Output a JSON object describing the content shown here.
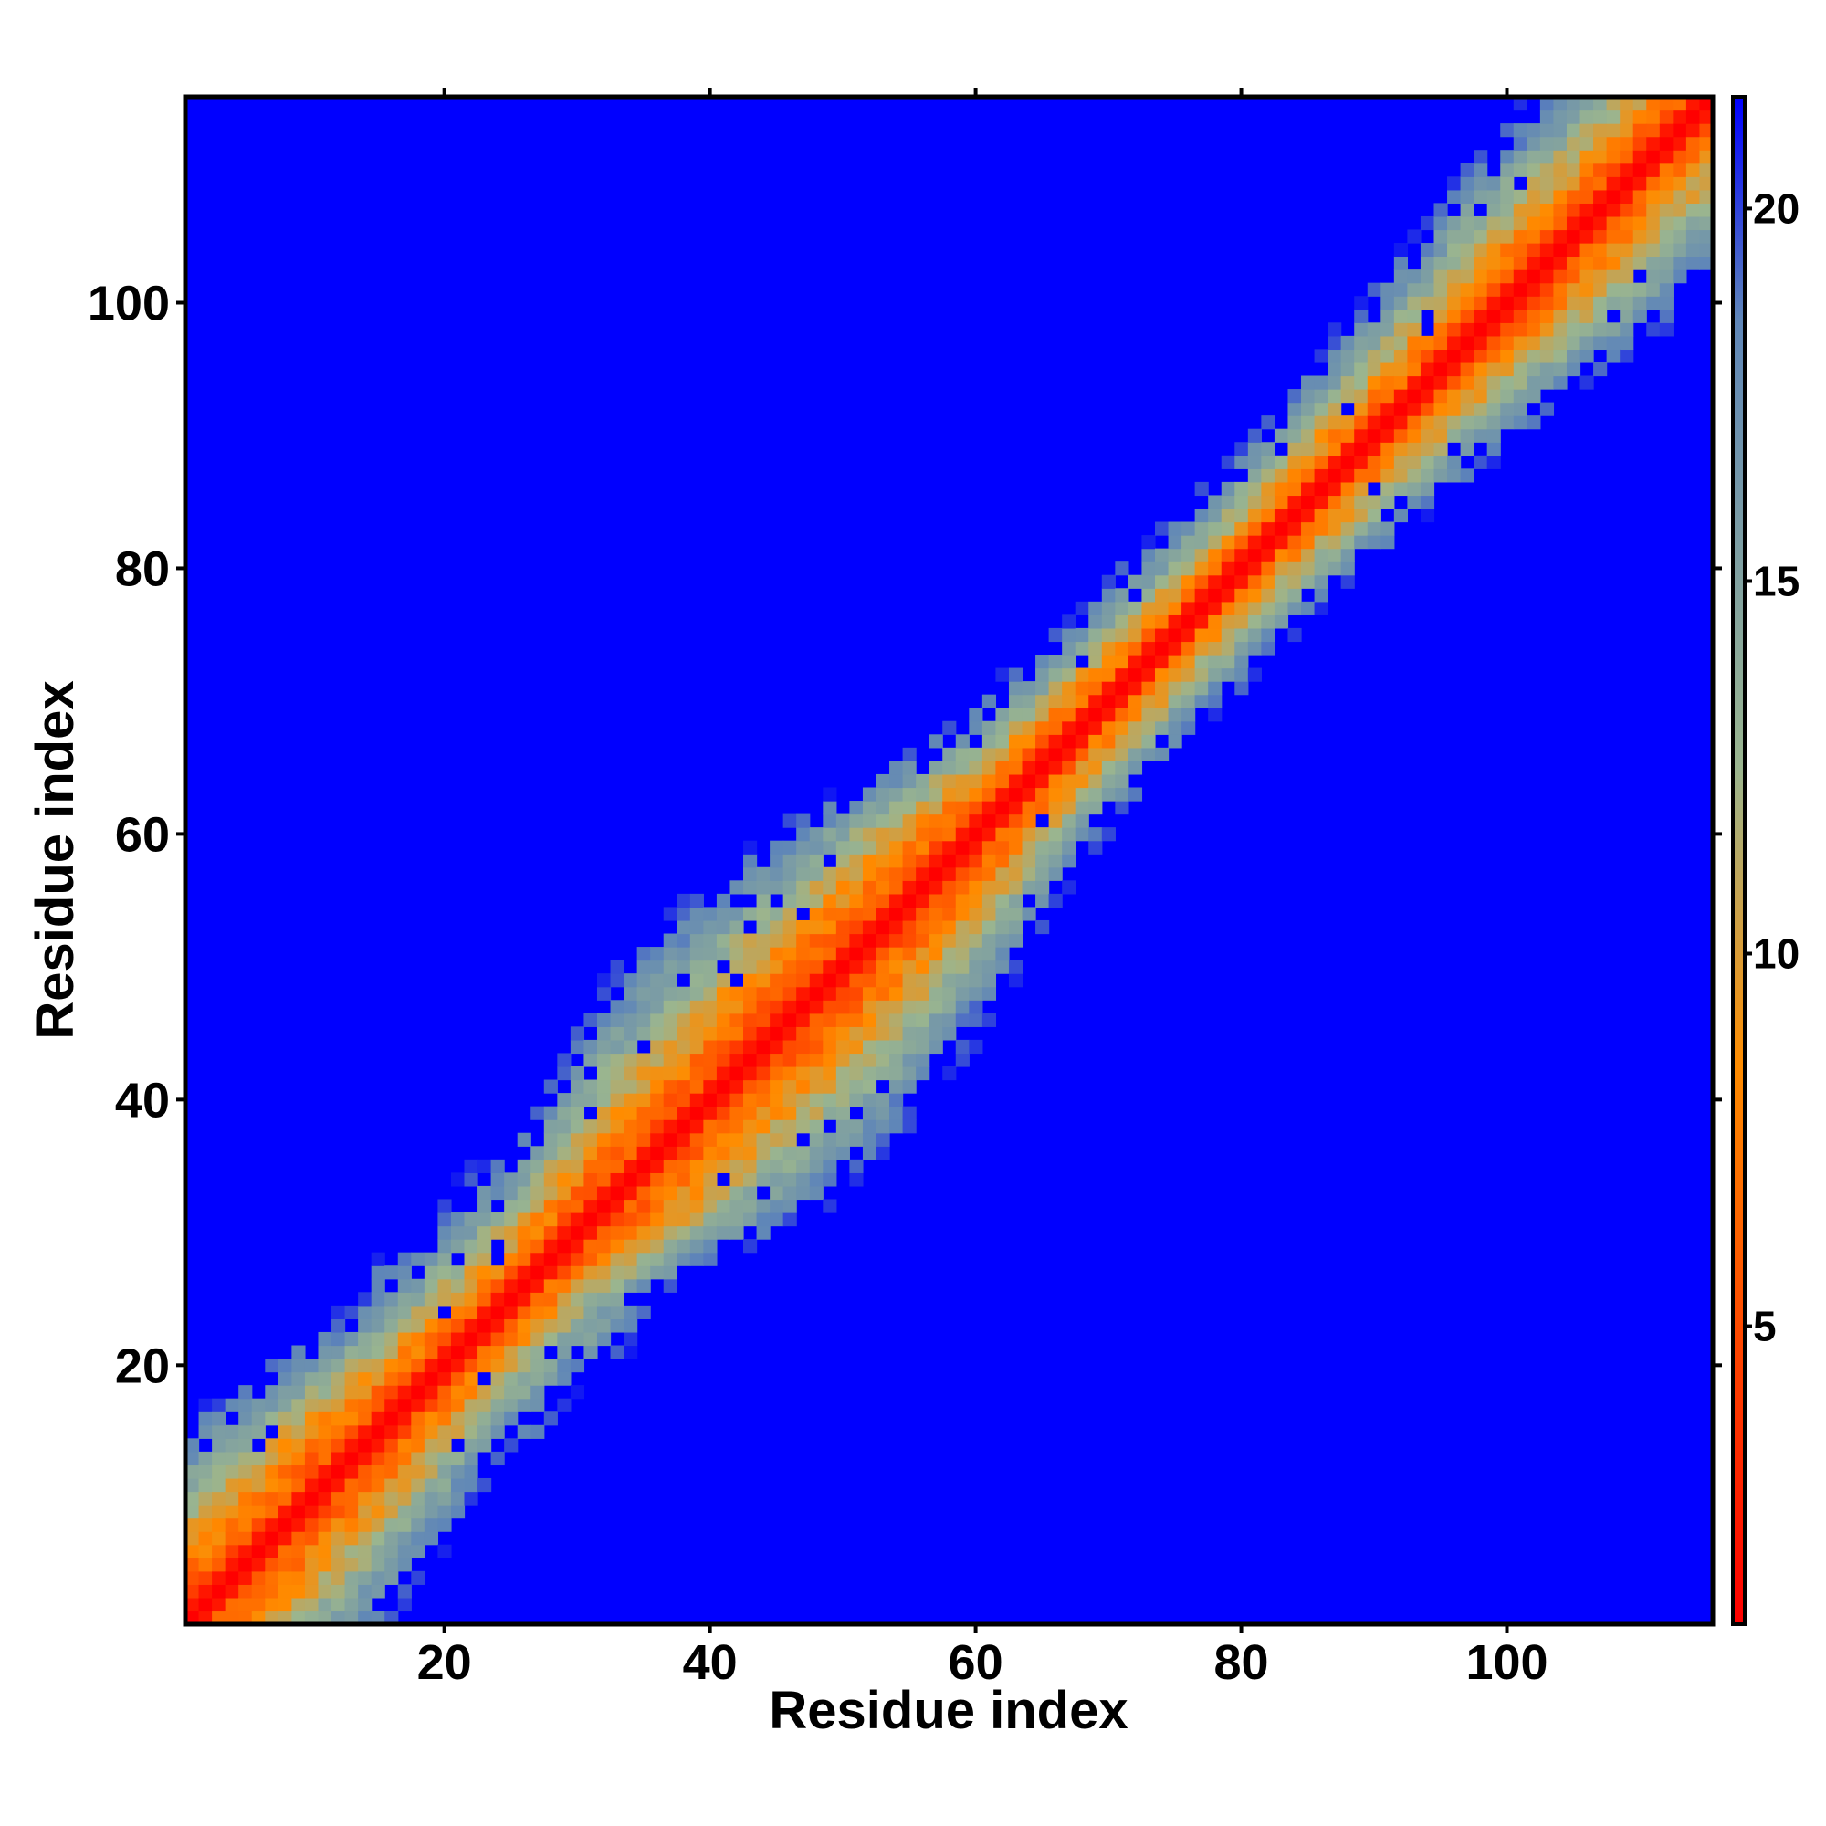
{
  "chart_data": {
    "type": "heatmap",
    "title": "",
    "xlabel": "Residue index",
    "ylabel": "Residue index",
    "n_residues": 115,
    "xlim": [
      1,
      115
    ],
    "ylim": [
      1,
      115
    ],
    "x_ticks": [
      20,
      40,
      60,
      80,
      100
    ],
    "y_ticks": [
      20,
      40,
      60,
      80,
      100
    ],
    "colorbar": {
      "range": [
        1,
        21.5
      ],
      "ticks": [
        5,
        10,
        15,
        20
      ],
      "colors": [
        "#ff0000",
        "#ff8c00",
        "#9ab58f",
        "#5f86b8",
        "#0000ff"
      ],
      "stops": [
        1,
        8.5,
        12.5,
        18.5,
        21.5
      ]
    },
    "band_halfwidth_profile": [
      {
        "residue": 1,
        "halfwidth": 14
      },
      {
        "residue": 15,
        "halfwidth": 13
      },
      {
        "residue": 25,
        "halfwidth": 9
      },
      {
        "residue": 32,
        "halfwidth": 14
      },
      {
        "residue": 48,
        "halfwidth": 16
      },
      {
        "residue": 60,
        "halfwidth": 13
      },
      {
        "residue": 68,
        "halfwidth": 8
      },
      {
        "residue": 78,
        "halfwidth": 7
      },
      {
        "residue": 90,
        "halfwidth": 9
      },
      {
        "residue": 100,
        "halfwidth": 12
      },
      {
        "residue": 115,
        "halfwidth": 11
      }
    ],
    "diagonal_value": 1,
    "outside_value": 21.5,
    "grid": false
  }
}
